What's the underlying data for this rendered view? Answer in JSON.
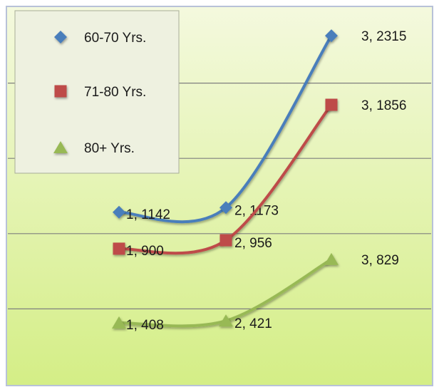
{
  "colors": {
    "background_top": "#f4f9de",
    "background_bottom": "#d4ee86",
    "frame": "#b8c2d8",
    "gridline": "#7f7f7f",
    "legend_fill": "#eef1e0",
    "legend_border": "#a8ad98"
  },
  "chart_data": {
    "type": "line",
    "title": "",
    "xlabel": "",
    "ylabel": "",
    "smooth": true,
    "grid": true,
    "legend_position": "top-left",
    "x": [
      1,
      2,
      3
    ],
    "ylim": [
      0,
      2500
    ],
    "series": [
      {
        "name": "60-70 Yrs.",
        "values": [
          1142,
          1173,
          2315
        ],
        "color": "#4a7ebb",
        "marker": "diamond",
        "labels": [
          "1, 1142",
          "2, 1173",
          "3, 2315"
        ]
      },
      {
        "name": "71-80 Yrs.",
        "values": [
          900,
          956,
          1856
        ],
        "color": "#be4b48",
        "marker": "square",
        "labels": [
          "1, 900",
          "2, 956",
          "3, 1856"
        ]
      },
      {
        "name": "80+ Yrs.",
        "values": [
          408,
          421,
          829
        ],
        "color": "#98b954",
        "marker": "triangle",
        "labels": [
          "1, 408",
          "2, 421",
          "3, 829"
        ]
      }
    ]
  }
}
